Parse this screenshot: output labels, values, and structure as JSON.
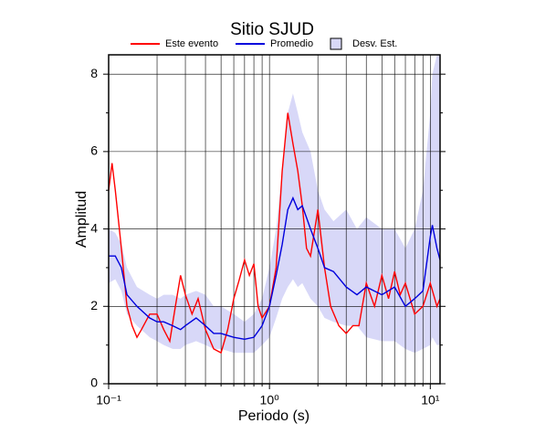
{
  "chart_data": {
    "type": "line",
    "title": "Sitio SJUD",
    "xlabel": "Periodo (s)",
    "ylabel": "Amplitud",
    "xscale": "log",
    "xlim": [
      0.1,
      11.5
    ],
    "ylim": [
      0,
      8.5
    ],
    "xticks": [
      {
        "value": 0.1,
        "label": "10⁻¹"
      },
      {
        "value": 1,
        "label": "10⁰"
      },
      {
        "value": 10,
        "label": "10¹"
      }
    ],
    "xminorticks": [
      0.2,
      0.3,
      0.4,
      0.5,
      0.6,
      0.7,
      0.8,
      0.9,
      2,
      3,
      4,
      5,
      6,
      7,
      8,
      9
    ],
    "yticks": [
      0,
      2,
      4,
      6,
      8
    ],
    "yminorticks": [
      1,
      3,
      5,
      7
    ],
    "grid": true,
    "series": [
      {
        "name": "Este evento",
        "color": "#ff0000",
        "x": [
          0.1,
          0.105,
          0.11,
          0.12,
          0.13,
          0.14,
          0.15,
          0.16,
          0.18,
          0.2,
          0.22,
          0.24,
          0.26,
          0.28,
          0.3,
          0.33,
          0.36,
          0.4,
          0.45,
          0.5,
          0.55,
          0.6,
          0.65,
          0.7,
          0.75,
          0.8,
          0.85,
          0.9,
          1.0,
          1.1,
          1.2,
          1.3,
          1.4,
          1.5,
          1.6,
          1.7,
          1.8,
          2.0,
          2.2,
          2.4,
          2.7,
          3.0,
          3.3,
          3.6,
          4.0,
          4.5,
          5.0,
          5.5,
          6.0,
          6.5,
          7.0,
          8.0,
          9.0,
          10,
          11,
          11.5
        ],
        "values": [
          5.0,
          5.7,
          5.0,
          3.5,
          2.0,
          1.5,
          1.2,
          1.4,
          1.8,
          1.8,
          1.4,
          1.1,
          2.0,
          2.8,
          2.3,
          1.8,
          2.2,
          1.4,
          0.9,
          0.8,
          1.4,
          2.2,
          2.7,
          3.2,
          2.8,
          3.1,
          2.0,
          1.7,
          2.0,
          3.0,
          5.5,
          7.0,
          6.2,
          5.5,
          4.6,
          3.5,
          3.3,
          4.5,
          3.0,
          2.0,
          1.5,
          1.3,
          1.5,
          1.5,
          2.6,
          2.0,
          2.8,
          2.2,
          2.9,
          2.3,
          2.6,
          1.8,
          2.0,
          2.6,
          2.0,
          2.2
        ]
      },
      {
        "name": "Promedio",
        "color": "#0000dd",
        "x": [
          0.1,
          0.11,
          0.12,
          0.13,
          0.15,
          0.18,
          0.2,
          0.22,
          0.25,
          0.28,
          0.3,
          0.35,
          0.4,
          0.45,
          0.5,
          0.6,
          0.7,
          0.8,
          0.9,
          1.0,
          1.1,
          1.2,
          1.3,
          1.4,
          1.5,
          1.6,
          1.8,
          2.0,
          2.2,
          2.5,
          3.0,
          3.5,
          4.0,
          5.0,
          6.0,
          7.0,
          8.0,
          9.0,
          10,
          10.3,
          11,
          11.5
        ],
        "values": [
          3.3,
          3.3,
          3.0,
          2.3,
          2.0,
          1.7,
          1.6,
          1.6,
          1.5,
          1.4,
          1.5,
          1.7,
          1.5,
          1.3,
          1.3,
          1.2,
          1.15,
          1.2,
          1.5,
          2.0,
          2.8,
          3.6,
          4.5,
          4.8,
          4.5,
          4.6,
          4.0,
          3.5,
          3.0,
          2.9,
          2.5,
          2.3,
          2.5,
          2.3,
          2.5,
          2.0,
          2.2,
          2.4,
          3.8,
          4.1,
          3.5,
          3.2
        ]
      },
      {
        "name": "Desv. Est.",
        "color": "#d8d8f8",
        "x": [
          0.1,
          0.11,
          0.12,
          0.13,
          0.15,
          0.18,
          0.2,
          0.22,
          0.25,
          0.28,
          0.3,
          0.35,
          0.4,
          0.45,
          0.5,
          0.6,
          0.7,
          0.8,
          0.9,
          1.0,
          1.1,
          1.2,
          1.3,
          1.4,
          1.5,
          1.6,
          1.8,
          2.0,
          2.2,
          2.5,
          3.0,
          3.5,
          4.0,
          5.0,
          6.0,
          7.0,
          8.0,
          9.0,
          10,
          10.3,
          11,
          11.5
        ],
        "upper": [
          4.0,
          3.9,
          3.6,
          3.0,
          2.5,
          2.3,
          2.2,
          2.3,
          2.3,
          2.2,
          2.3,
          2.4,
          2.3,
          2.0,
          2.0,
          1.8,
          1.6,
          1.8,
          2.2,
          3.0,
          4.0,
          5.5,
          7.0,
          7.5,
          7.0,
          6.5,
          6.0,
          5.0,
          4.5,
          4.2,
          4.5,
          4.0,
          4.3,
          4.0,
          4.0,
          3.5,
          4.0,
          5.0,
          7.0,
          8.0,
          8.5,
          8.5
        ],
        "lower": [
          2.6,
          2.7,
          2.4,
          1.8,
          1.5,
          1.2,
          1.1,
          1.0,
          0.9,
          0.9,
          1.0,
          1.1,
          1.0,
          0.9,
          0.9,
          0.8,
          0.8,
          0.8,
          1.0,
          1.2,
          1.7,
          2.2,
          2.5,
          2.7,
          2.5,
          2.6,
          2.2,
          2.0,
          1.7,
          1.6,
          1.5,
          1.5,
          1.2,
          1.1,
          1.1,
          0.9,
          0.8,
          0.9,
          1.0,
          1.2,
          1.0,
          1.0
        ]
      }
    ]
  }
}
